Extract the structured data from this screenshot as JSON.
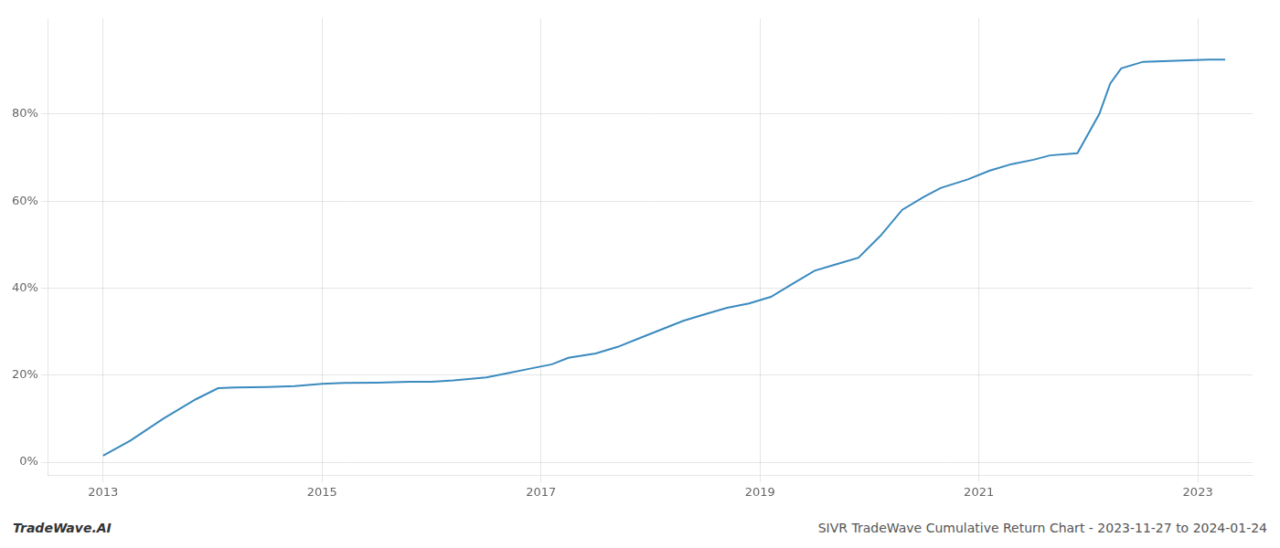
{
  "chart_data": {
    "type": "line",
    "x": [
      2013.0,
      2013.25,
      2013.55,
      2013.85,
      2014.05,
      2014.2,
      2014.5,
      2014.75,
      2015.0,
      2015.2,
      2015.5,
      2015.8,
      2016.0,
      2016.2,
      2016.5,
      2016.7,
      2016.9,
      2017.1,
      2017.25,
      2017.5,
      2017.7,
      2017.9,
      2018.1,
      2018.3,
      2018.5,
      2018.7,
      2018.9,
      2019.1,
      2019.3,
      2019.5,
      2019.7,
      2019.9,
      2020.1,
      2020.3,
      2020.5,
      2020.65,
      2020.9,
      2021.1,
      2021.3,
      2021.5,
      2021.65,
      2021.9,
      2022.1,
      2022.2,
      2022.3,
      2022.5,
      2023.1,
      2023.25
    ],
    "values": [
      1.5,
      5.0,
      10.0,
      14.5,
      17.0,
      17.2,
      17.3,
      17.5,
      18.0,
      18.2,
      18.3,
      18.5,
      18.5,
      18.8,
      19.5,
      20.5,
      21.5,
      22.5,
      24.0,
      25.0,
      26.5,
      28.5,
      30.5,
      32.5,
      34.0,
      35.5,
      36.5,
      38.0,
      41.0,
      44.0,
      45.5,
      47.0,
      52.0,
      58.0,
      61.0,
      63.0,
      65.0,
      67.0,
      68.5,
      69.5,
      70.5,
      71.0,
      80.0,
      87.0,
      90.5,
      92.0,
      92.5,
      92.5
    ],
    "color": "#3a8abf",
    "xlim": [
      2012.5,
      2023.5
    ],
    "ylim": [
      -3,
      102
    ],
    "xticks": [
      2013,
      2015,
      2017,
      2019,
      2021,
      2023
    ],
    "yticks": [
      {
        "value": 0,
        "label": "0%"
      },
      {
        "value": 20,
        "label": "20%"
      },
      {
        "value": 40,
        "label": "40%"
      },
      {
        "value": 60,
        "label": "60%"
      },
      {
        "value": 80,
        "label": "80%"
      }
    ],
    "grid": true,
    "annotations": [
      "TradeWave.AI",
      "SIVR TradeWave Cumulative Return Chart - 2023-11-27 to 2024-01-24"
    ]
  }
}
